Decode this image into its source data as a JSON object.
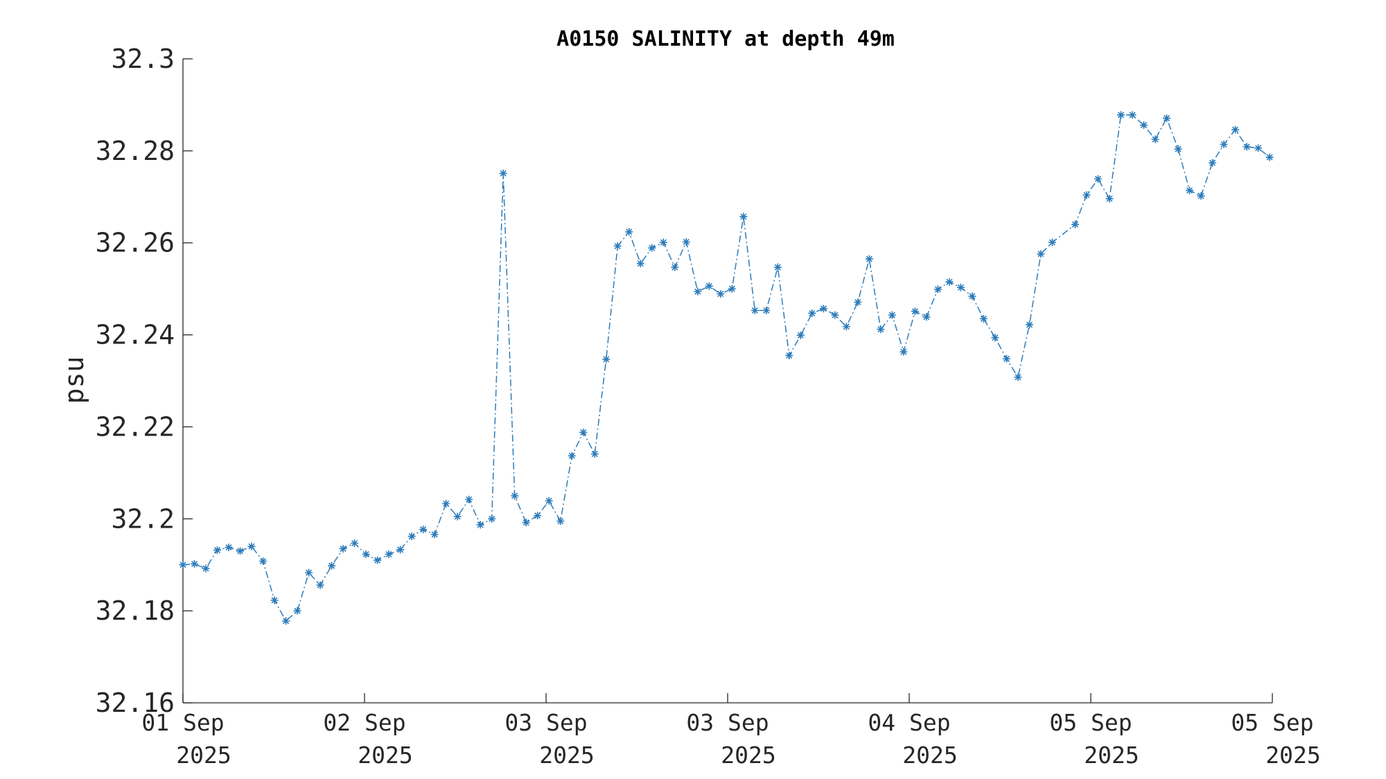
{
  "chart_data": {
    "type": "line",
    "title": "A0150 SALINITY at depth 49m",
    "ylabel": "psu",
    "xlabel": "",
    "ylim": [
      32.16,
      32.3
    ],
    "yticks": [
      32.16,
      32.18,
      32.2,
      32.22,
      32.24,
      32.26,
      32.28,
      32.3
    ],
    "ytick_labels": [
      "32.16",
      "32.18",
      "32.2",
      "32.22",
      "32.24",
      "32.26",
      "32.28",
      "32.3"
    ],
    "xlim": [
      0,
      6
    ],
    "xticks": [
      {
        "value": 0,
        "line1": "01 Sep",
        "line2": "2025"
      },
      {
        "value": 1,
        "line1": "02 Sep",
        "line2": "2025"
      },
      {
        "value": 2,
        "line1": "03 Sep",
        "line2": "2025"
      },
      {
        "value": 3,
        "line1": "03 Sep",
        "line2": "2025"
      },
      {
        "value": 4,
        "line1": "04 Sep",
        "line2": "2025"
      },
      {
        "value": 5,
        "line1": "05 Sep",
        "line2": "2025"
      },
      {
        "value": 6,
        "line1": "05 Sep",
        "line2": "2025"
      }
    ],
    "marker": "asterisk",
    "line_style": "dash-dot",
    "color": "#2b7bba",
    "grid": false,
    "series": [
      {
        "x": [
          0,
          0.063,
          0.126,
          0.189,
          0.252,
          0.315,
          0.378,
          0.441,
          0.504,
          0.567,
          0.63,
          0.693,
          0.756,
          0.819,
          0.882,
          0.945,
          1.008,
          1.071,
          1.134,
          1.197,
          1.26,
          1.323,
          1.386,
          1.449,
          1.512,
          1.575,
          1.638,
          1.701,
          1.764,
          1.827,
          1.89,
          1.953,
          2.016,
          2.079,
          2.142,
          2.205,
          2.268,
          2.331,
          2.394,
          2.457,
          2.52,
          2.583,
          2.646,
          2.709,
          2.772,
          2.835,
          2.898,
          2.961,
          3.024,
          3.087,
          3.15,
          3.213,
          3.276,
          3.339,
          3.402,
          3.465,
          3.528,
          3.591,
          3.654,
          3.717,
          3.78,
          3.843,
          3.906,
          3.969,
          4.032,
          4.095,
          4.158,
          4.221,
          4.284,
          4.347,
          4.41,
          4.473,
          4.536,
          4.599,
          4.662,
          4.725,
          4.788,
          4.914,
          4.977,
          5.04,
          5.103,
          5.166,
          5.229,
          5.292,
          5.355,
          5.418,
          5.481,
          5.544,
          5.607,
          5.67,
          5.733,
          5.796,
          5.859,
          5.922,
          5.985
        ],
        "y": [
          32.19,
          32.1902,
          32.1892,
          32.1932,
          32.1938,
          32.193,
          32.194,
          32.1908,
          32.1823,
          32.1778,
          32.18,
          32.1883,
          32.1856,
          32.1898,
          32.1935,
          32.1947,
          32.1923,
          32.191,
          32.1923,
          32.1933,
          32.1962,
          32.1977,
          32.1966,
          32.2033,
          32.2005,
          32.2042,
          32.1987,
          32.2,
          32.2751,
          32.205,
          32.1992,
          32.2007,
          32.2039,
          32.1995,
          32.2137,
          32.2188,
          32.2141,
          32.2347,
          32.2593,
          32.2624,
          32.2555,
          32.2589,
          32.2601,
          32.2547,
          32.2602,
          32.2494,
          32.2506,
          32.2489,
          32.25,
          32.2657,
          32.2453,
          32.2453,
          32.2547,
          32.2355,
          32.2399,
          32.2447,
          32.2457,
          32.2443,
          32.2418,
          32.2471,
          32.2565,
          32.2412,
          32.2443,
          32.2363,
          32.2451,
          32.2439,
          32.2499,
          32.2515,
          32.2503,
          32.2484,
          32.2435,
          32.2394,
          32.2348,
          32.2308,
          32.2422,
          32.2576,
          32.2601,
          32.264,
          32.2704,
          32.2739,
          32.2696,
          32.2878,
          32.2878,
          32.2856,
          32.2825,
          32.2871,
          32.2804,
          32.2714,
          32.2702,
          32.2774,
          32.2814,
          32.2846,
          32.2809,
          32.2806,
          32.2786
        ]
      }
    ]
  }
}
